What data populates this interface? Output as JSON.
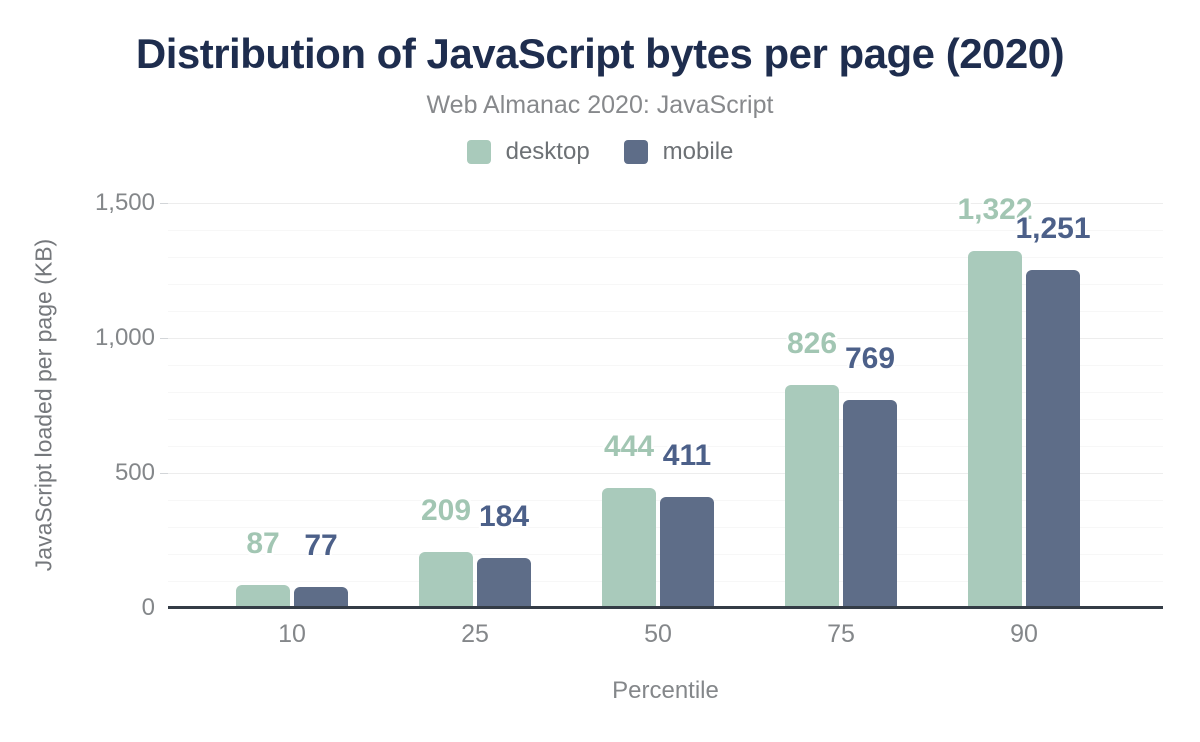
{
  "chart_data": {
    "type": "bar",
    "title": "Distribution of JavaScript bytes per page (2020)",
    "subtitle": "Web Almanac 2020: JavaScript",
    "xlabel": "Percentile",
    "ylabel": "JavaScript loaded per page (KB)",
    "categories": [
      "10",
      "25",
      "50",
      "75",
      "90"
    ],
    "series": [
      {
        "name": "desktop",
        "color": "#a9cabb",
        "label_color": "#a2c6b3",
        "values": [
          87,
          209,
          444,
          826,
          1322
        ],
        "labels": [
          "87",
          "209",
          "444",
          "826",
          "1,322"
        ]
      },
      {
        "name": "mobile",
        "color": "#5e6d88",
        "label_color": "#4c6089",
        "values": [
          77,
          184,
          411,
          769,
          1251
        ],
        "labels": [
          "77",
          "184",
          "411",
          "769",
          "1,251"
        ]
      }
    ],
    "ylim": [
      0,
      1500
    ],
    "yticks": [
      {
        "value": 0,
        "label": "0"
      },
      {
        "value": 500,
        "label": "500"
      },
      {
        "value": 1000,
        "label": "1,000"
      },
      {
        "value": 1500,
        "label": "1,500"
      }
    ],
    "minor_grid_step": 100,
    "grid": true,
    "legend_position": "top",
    "colors": {
      "title": "#1e2d4e",
      "subtitle_text": "#87898c",
      "axis_text": "#84878a",
      "axis_line": "#343c46"
    }
  }
}
